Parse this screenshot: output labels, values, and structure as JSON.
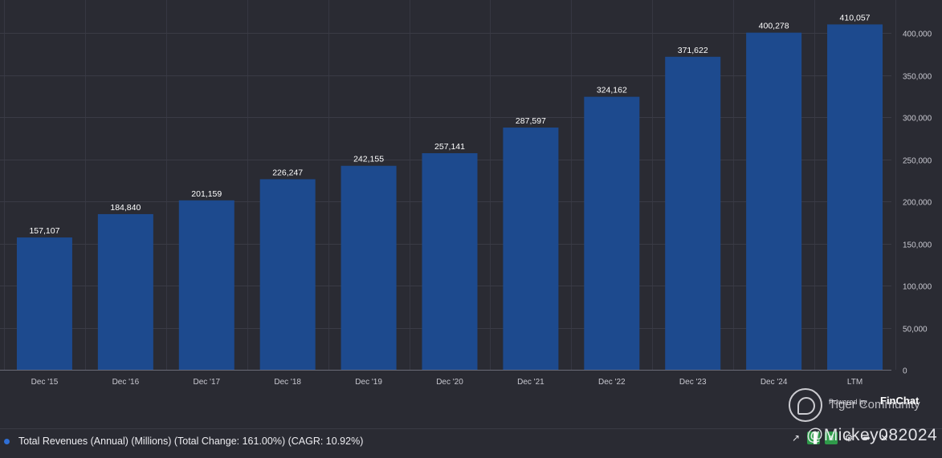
{
  "chart_data": {
    "type": "bar",
    "categories": [
      "Dec '15",
      "Dec '16",
      "Dec '17",
      "Dec '18",
      "Dec '19",
      "Dec '20",
      "Dec '21",
      "Dec '22",
      "Dec '23",
      "Dec '24",
      "LTM"
    ],
    "values": [
      157107,
      184840,
      201159,
      226247,
      242155,
      257141,
      287597,
      324162,
      371622,
      400278,
      410057
    ],
    "value_labels": [
      "157,107",
      "184,840",
      "201,159",
      "226,247",
      "242,155",
      "257,141",
      "287,597",
      "324,162",
      "371,622",
      "400,278",
      "410,057"
    ],
    "y_ticks": [
      0,
      50000,
      100000,
      150000,
      200000,
      250000,
      300000,
      350000,
      400000
    ],
    "y_tick_labels": [
      "0",
      "50,000",
      "100,000",
      "150,000",
      "200,000",
      "250,000",
      "300,000",
      "350,000",
      "400,000"
    ],
    "ylim": [
      0,
      435000
    ],
    "y_axis_side": "right",
    "grid": true,
    "bar_color": "#1d4a8e",
    "legend": {
      "label": "Total Revenues (Annual) (Millions) (Total Change: 161.00%) (CAGR: 10.92%)",
      "color": "#2f6fd6",
      "placement": "bottom-left"
    }
  },
  "watermark": {
    "powered_by": "Powered by",
    "brand": "FinChat",
    "community": "Tiger Community",
    "handle": "@Mickey082024"
  },
  "colors": {
    "background": "#2a2b33",
    "grid": "#3a3b45",
    "bar": "#1d4a8e"
  },
  "toolbar": {
    "icons": [
      "line-chart-icon",
      "bar-chart-icon",
      "table-icon",
      "settings-icon",
      "share-icon",
      "close-icon"
    ]
  }
}
